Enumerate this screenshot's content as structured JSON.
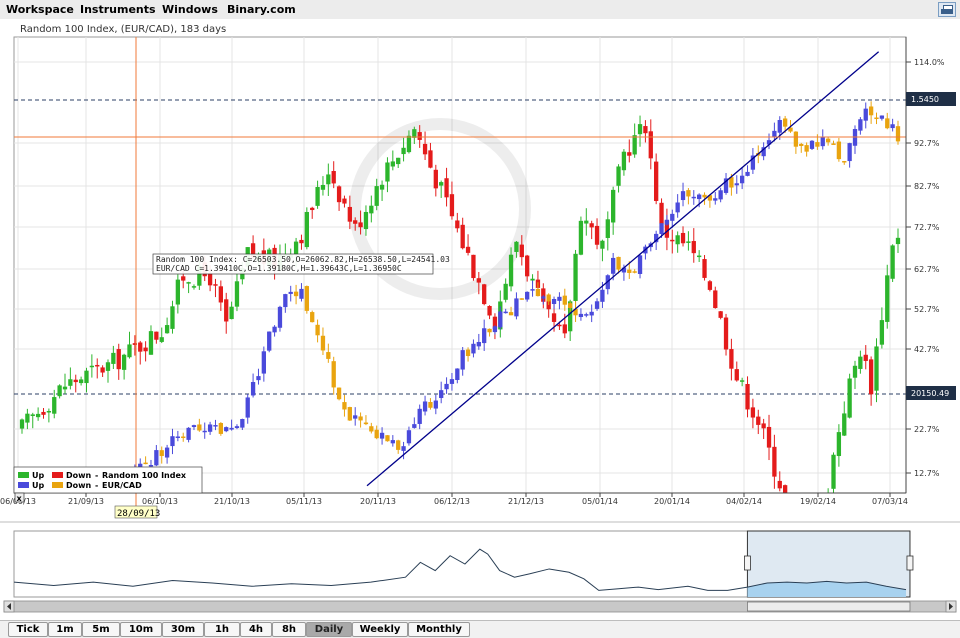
{
  "menu": {
    "items": [
      "Workspace",
      "Instruments",
      "Windows",
      "Binary.com"
    ],
    "print_icon": "printer-icon"
  },
  "chart_data": {
    "type": "candlestick",
    "title": "Random 100 Index, (EUR/CAD), 183 days",
    "x_ticks": [
      "06/09/13",
      "21/09/13",
      "06/10/13",
      "21/10/13",
      "05/11/13",
      "20/11/13",
      "06/12/13",
      "21/12/13",
      "05/01/14",
      "20/01/14",
      "04/02/14",
      "19/02/14",
      "07/03/14"
    ],
    "y_ticks": [
      "114.0%",
      "92.7%",
      "82.7%",
      "72.7%",
      "62.7%",
      "52.7%",
      "42.7%",
      "22.7%",
      "12.7%"
    ],
    "price_labels": [
      {
        "value": "1.5450",
        "style": "dark"
      },
      {
        "value": "20150.49",
        "style": "dark"
      }
    ],
    "crosshair_date": "28/09/13",
    "tooltip": {
      "line1": "Random 100 Index: C=26503.50,O=26062.82,H=26538.50,L=24541.03",
      "line2": "EUR/CAD           C=1.39410C,O=1.39180C,H=1.39643C,L=1.36950C"
    },
    "legend": [
      {
        "up_label": "Up",
        "down_label": "Down",
        "name": "Random 100 Index",
        "up_color": "#2cb52c",
        "down_color": "#e41b1b"
      },
      {
        "up_label": "Up",
        "down_label": "Down",
        "name": "EUR/CAD",
        "up_color": "#4a4adb",
        "down_color": "#e9a40f"
      }
    ],
    "legend_placement": "bottom-left",
    "series": [
      {
        "name": "Random 100 Index",
        "up_color": "#2cb52c",
        "down_color": "#e41b1b",
        "keys": [
          [
            0,
            18
          ],
          [
            8,
            30
          ],
          [
            17,
            36
          ],
          [
            26,
            45
          ],
          [
            30,
            60
          ],
          [
            35,
            60
          ],
          [
            38,
            46
          ],
          [
            42,
            66
          ],
          [
            47,
            64
          ],
          [
            52,
            72
          ],
          [
            57,
            90
          ],
          [
            62,
            73
          ],
          [
            67,
            88
          ],
          [
            73,
            101
          ],
          [
            79,
            80
          ],
          [
            84,
            62
          ],
          [
            88,
            48
          ],
          [
            92,
            70
          ],
          [
            97,
            50
          ],
          [
            101,
            42
          ],
          [
            104,
            78
          ],
          [
            108,
            68
          ],
          [
            112,
            94
          ],
          [
            116,
            102
          ],
          [
            119,
            73
          ],
          [
            124,
            68
          ],
          [
            128,
            58
          ],
          [
            133,
            32
          ],
          [
            137,
            20
          ],
          [
            141,
            3
          ],
          [
            145,
            -12
          ],
          [
            149,
            -5
          ],
          [
            152,
            18
          ],
          [
            154,
            30
          ],
          [
            156,
            40
          ],
          [
            158,
            30
          ],
          [
            160,
            50
          ],
          [
            161,
            60
          ],
          [
            162,
            70
          ],
          [
            163,
            70
          ]
        ],
        "noise": 6
      },
      {
        "name": "EUR/CAD",
        "up_color": "#4a4adb",
        "down_color": "#e9a40f",
        "keys": [
          [
            12,
            2
          ],
          [
            20,
            4
          ],
          [
            26,
            12
          ],
          [
            30,
            16
          ],
          [
            35,
            18
          ],
          [
            40,
            18
          ],
          [
            44,
            34
          ],
          [
            48,
            52
          ],
          [
            52,
            56
          ],
          [
            56,
            40
          ],
          [
            60,
            22
          ],
          [
            65,
            18
          ],
          [
            70,
            12
          ],
          [
            74,
            22
          ],
          [
            78,
            28
          ],
          [
            82,
            38
          ],
          [
            88,
            48
          ],
          [
            96,
            56
          ],
          [
            101,
            52
          ],
          [
            105,
            48
          ],
          [
            110,
            64
          ],
          [
            114,
            62
          ],
          [
            119,
            74
          ],
          [
            123,
            84
          ],
          [
            128,
            82
          ],
          [
            132,
            86
          ],
          [
            138,
            95
          ],
          [
            141,
            103
          ],
          [
            145,
            94
          ],
          [
            149,
            98
          ],
          [
            153,
            92
          ],
          [
            157,
            106
          ],
          [
            161,
            102
          ],
          [
            163,
            98
          ]
        ],
        "noise": 4
      }
    ],
    "navigator": {
      "points": [
        [
          0,
          62
        ],
        [
          40,
          66
        ],
        [
          80,
          62
        ],
        [
          120,
          67
        ],
        [
          160,
          60
        ],
        [
          200,
          63
        ],
        [
          240,
          67
        ],
        [
          280,
          64
        ],
        [
          320,
          66
        ],
        [
          360,
          62
        ],
        [
          395,
          56
        ],
        [
          410,
          38
        ],
        [
          425,
          48
        ],
        [
          440,
          30
        ],
        [
          455,
          40
        ],
        [
          470,
          22
        ],
        [
          478,
          28
        ],
        [
          490,
          48
        ],
        [
          505,
          56
        ],
        [
          520,
          52
        ],
        [
          540,
          46
        ],
        [
          560,
          50
        ],
        [
          575,
          58
        ],
        [
          590,
          72
        ],
        [
          610,
          70
        ],
        [
          630,
          68
        ],
        [
          650,
          71
        ],
        [
          680,
          67
        ],
        [
          700,
          72
        ],
        [
          720,
          72
        ],
        [
          740,
          68
        ],
        [
          760,
          63
        ],
        [
          780,
          62
        ],
        [
          800,
          63
        ],
        [
          820,
          61
        ],
        [
          840,
          63
        ],
        [
          860,
          62
        ],
        [
          880,
          67
        ],
        [
          900,
          71
        ]
      ],
      "window_start": 740,
      "window_end": 904
    },
    "trend_line": {
      "from": [
        0,
        2
      ],
      "to": [
        162,
        122
      ]
    }
  },
  "timeframes": [
    "Tick",
    "1m",
    "5m",
    "10m",
    "30m",
    "1h",
    "4h",
    "8h",
    "Daily",
    "Weekly",
    "Monthly"
  ],
  "active_timeframe": "Daily"
}
